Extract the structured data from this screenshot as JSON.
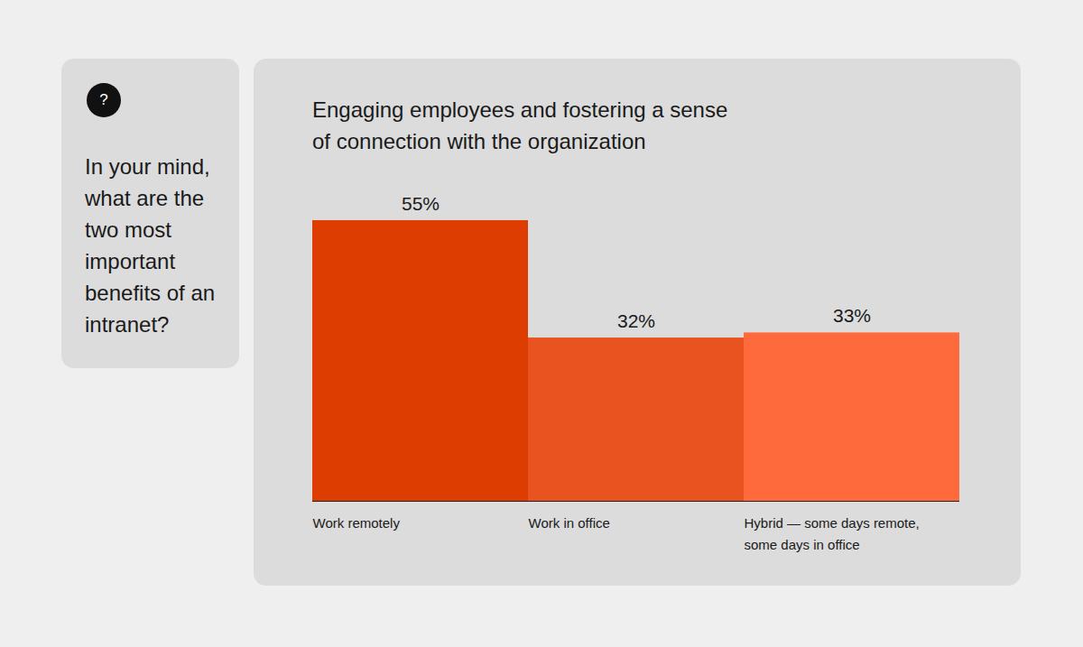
{
  "question": {
    "icon": "?",
    "text": "In your mind, what are the two most important benefits of an intranet?"
  },
  "chart_data": {
    "type": "bar",
    "title": "Engaging employees and fostering a sense of connection with the organization",
    "categories": [
      "Work remotely",
      "Work in office",
      "Hybrid — some days remote, some days in office"
    ],
    "values": [
      55,
      32,
      33
    ],
    "value_labels": [
      "55%",
      "32%",
      "33%"
    ],
    "colors": [
      "#DD3D00",
      "#E8531F",
      "#FF6A3C"
    ],
    "ylim": [
      0,
      55
    ],
    "data_labels": true,
    "tick_labels": "x",
    "grid": false
  }
}
